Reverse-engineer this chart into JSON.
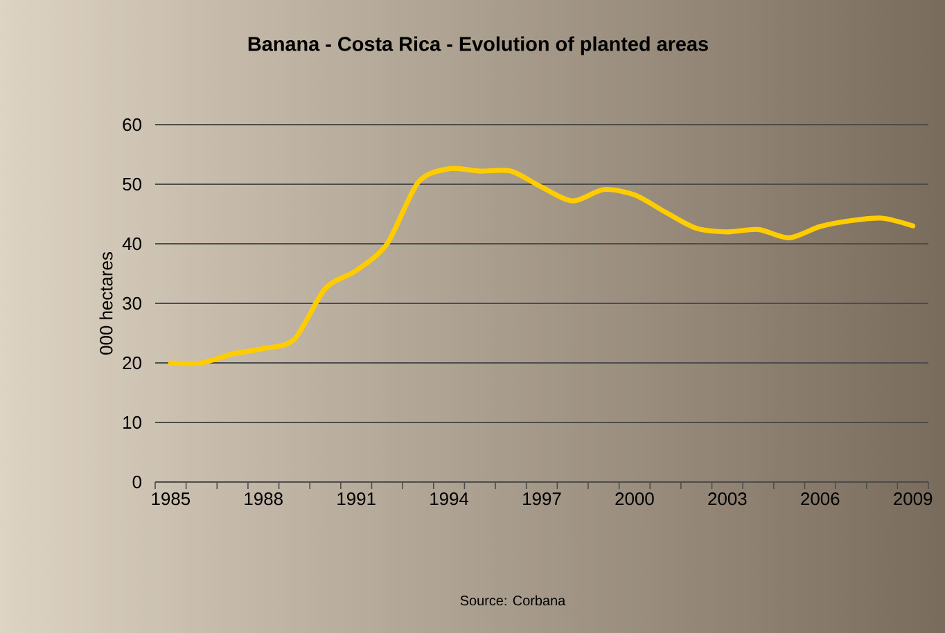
{
  "chart_data": {
    "type": "line",
    "title": "Banana - Costa Rica - Evolution of planted areas",
    "ylabel": "000 hectares",
    "annotations": [
      "Source: Corbana"
    ],
    "categories": [
      "1985",
      null,
      null,
      "1988",
      null,
      null,
      "1991",
      null,
      null,
      "1994",
      null,
      null,
      "1997",
      null,
      null,
      "2000",
      null,
      null,
      "2003",
      null,
      null,
      "2006",
      null,
      null,
      "2009"
    ],
    "series": [
      {
        "color": "#ffcc00",
        "values": [
          20,
          20,
          21.5,
          22.4,
          24,
          32.5,
          35.5,
          40,
          50.3,
          52.6,
          52.2,
          52.2,
          49.5,
          47.2,
          49.1,
          48.2,
          45.3,
          42.6,
          42,
          42.4,
          41,
          42.9,
          43.9,
          44.3,
          43
        ]
      }
    ],
    "ylim": [
      0,
      60
    ],
    "yticks": [
      0,
      10,
      20,
      30,
      40,
      50,
      60
    ],
    "grid": "y",
    "legend": false,
    "marker": "none",
    "line_style": "solid"
  }
}
